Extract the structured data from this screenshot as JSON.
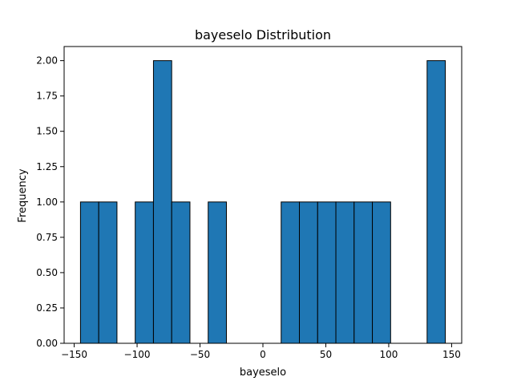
{
  "chart_data": {
    "type": "bar",
    "title": "bayeselo Distribution",
    "xlabel": "bayeselo",
    "ylabel": "Frequency",
    "xlim": [
      -158,
      158
    ],
    "ylim": [
      0,
      2.1
    ],
    "bar_color": "#1f77b4",
    "edge_color": "#000000",
    "grid": false,
    "bin_edges": [
      -145,
      -130.5,
      -116,
      -101.5,
      -87,
      -72.5,
      -58,
      -43.5,
      -29,
      -14.5,
      0,
      14.5,
      29,
      43.5,
      58,
      72.5,
      87,
      101.5,
      116,
      130.5,
      145
    ],
    "values": [
      1,
      1,
      0,
      1,
      2,
      1,
      0,
      1,
      0,
      0,
      0,
      1,
      1,
      1,
      1,
      1,
      1,
      0,
      0,
      2
    ],
    "x_ticks": [
      -150,
      -100,
      -50,
      0,
      50,
      100,
      150
    ],
    "x_tick_labels": [
      "−150",
      "−100",
      "−50",
      "0",
      "50",
      "100",
      "150"
    ],
    "y_ticks": [
      0,
      0.25,
      0.5,
      0.75,
      1.0,
      1.25,
      1.5,
      1.75,
      2.0
    ],
    "y_tick_labels": [
      "0.00",
      "0.25",
      "0.50",
      "0.75",
      "1.00",
      "1.25",
      "1.50",
      "1.75",
      "2.00"
    ]
  }
}
